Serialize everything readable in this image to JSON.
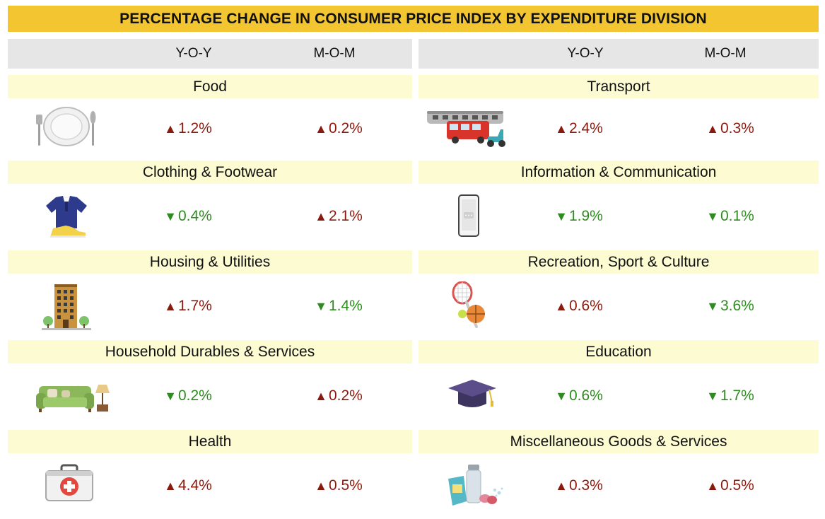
{
  "title": "PERCENTAGE CHANGE IN CONSUMER PRICE INDEX BY EXPENDITURE DIVISION",
  "columns": {
    "yoy": "Y-O-Y",
    "mom": "M-O-M"
  },
  "colors": {
    "title_bar": "#f2c531",
    "header_bar": "#e6e6e6",
    "section_bar": "#fcfbd2",
    "increase": "#8b1a0e",
    "decrease": "#2e8b1f"
  },
  "left": [
    {
      "label": "Food",
      "icon": "plate-cutlery-icon",
      "yoy": {
        "dir": "up",
        "arrow": "▲",
        "value": "1.2%"
      },
      "mom": {
        "dir": "up",
        "arrow": "▲",
        "value": "0.2%"
      }
    },
    {
      "label": "Clothing & Footwear",
      "icon": "shirt-shoe-icon",
      "yoy": {
        "dir": "down",
        "arrow": "▼",
        "value": "0.4%"
      },
      "mom": {
        "dir": "up",
        "arrow": "▲",
        "value": "2.1%"
      }
    },
    {
      "label": "Housing & Utilities",
      "icon": "building-icon",
      "yoy": {
        "dir": "up",
        "arrow": "▲",
        "value": "1.7%"
      },
      "mom": {
        "dir": "down",
        "arrow": "▼",
        "value": "1.4%"
      }
    },
    {
      "label": "Household Durables & Services",
      "icon": "sofa-lamp-icon",
      "yoy": {
        "dir": "down",
        "arrow": "▼",
        "value": "0.2%"
      },
      "mom": {
        "dir": "up",
        "arrow": "▲",
        "value": "0.2%"
      }
    },
    {
      "label": "Health",
      "icon": "first-aid-kit-icon",
      "yoy": {
        "dir": "up",
        "arrow": "▲",
        "value": "4.4%"
      },
      "mom": {
        "dir": "up",
        "arrow": "▲",
        "value": "0.5%"
      }
    }
  ],
  "right": [
    {
      "label": "Transport",
      "icon": "train-bus-scooter-icon",
      "yoy": {
        "dir": "up",
        "arrow": "▲",
        "value": "2.4%"
      },
      "mom": {
        "dir": "up",
        "arrow": "▲",
        "value": "0.3%"
      }
    },
    {
      "label": "Information & Communication",
      "icon": "smartphone-icon",
      "yoy": {
        "dir": "down",
        "arrow": "▼",
        "value": "1.9%"
      },
      "mom": {
        "dir": "down",
        "arrow": "▼",
        "value": "0.1%"
      }
    },
    {
      "label": "Recreation, Sport & Culture",
      "icon": "racket-ball-icon",
      "yoy": {
        "dir": "up",
        "arrow": "▲",
        "value": "0.6%"
      },
      "mom": {
        "dir": "down",
        "arrow": "▼",
        "value": "3.6%"
      }
    },
    {
      "label": "Education",
      "icon": "graduation-cap-icon",
      "yoy": {
        "dir": "down",
        "arrow": "▼",
        "value": "0.6%"
      },
      "mom": {
        "dir": "down",
        "arrow": "▼",
        "value": "1.7%"
      }
    },
    {
      "label": "Miscellaneous Goods & Services",
      "icon": "toiletries-icon",
      "yoy": {
        "dir": "up",
        "arrow": "▲",
        "value": "0.3%"
      },
      "mom": {
        "dir": "up",
        "arrow": "▲",
        "value": "0.5%"
      }
    }
  ]
}
